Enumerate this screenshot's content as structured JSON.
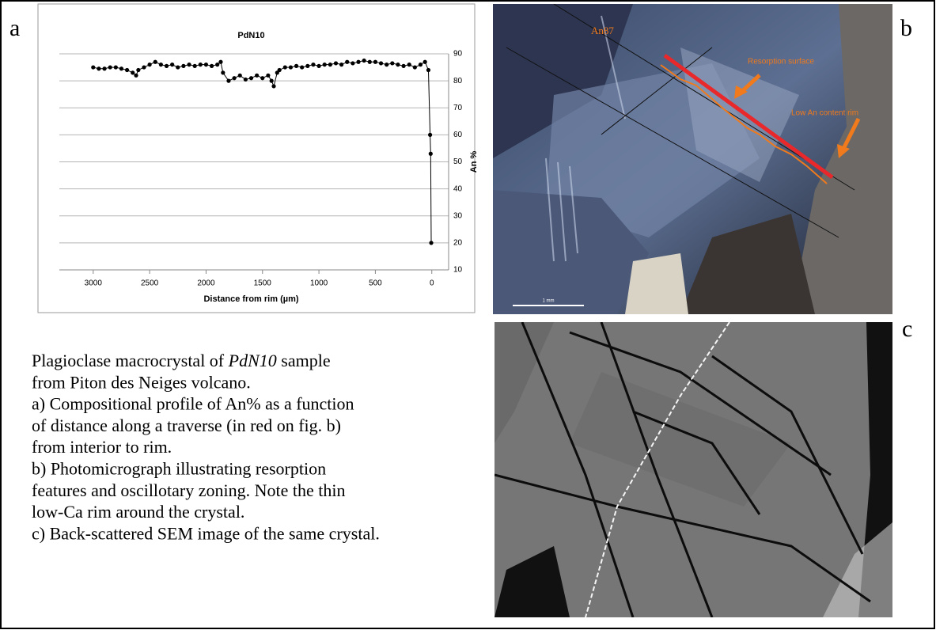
{
  "panel_labels": [
    "a",
    "b",
    "c"
  ],
  "chart_data": {
    "type": "line",
    "title": "PdN10",
    "xlabel": "Distance from rim (µm)",
    "ylabel": "An %",
    "x": [
      3000,
      2950,
      2900,
      2850,
      2800,
      2750,
      2700,
      2650,
      2620,
      2600,
      2550,
      2500,
      2450,
      2400,
      2350,
      2300,
      2250,
      2200,
      2150,
      2100,
      2050,
      2000,
      1950,
      1900,
      1870,
      1850,
      1800,
      1750,
      1700,
      1650,
      1600,
      1550,
      1500,
      1450,
      1420,
      1400,
      1370,
      1350,
      1300,
      1250,
      1200,
      1150,
      1100,
      1050,
      1000,
      950,
      900,
      850,
      800,
      750,
      700,
      650,
      600,
      550,
      500,
      450,
      400,
      350,
      300,
      250,
      200,
      150,
      100,
      60,
      30,
      15,
      10,
      5
    ],
    "series": [
      {
        "name": "An %",
        "color": "#000000",
        "values": [
          85,
          84.5,
          84.5,
          85,
          85,
          84.5,
          84,
          83,
          82,
          84,
          85,
          86,
          87,
          86,
          85.5,
          86,
          85,
          85.5,
          86,
          85.5,
          86,
          86,
          85.5,
          86,
          87,
          83,
          80,
          81,
          82,
          80.5,
          81,
          82,
          81,
          82,
          80,
          78,
          83,
          84,
          85,
          85,
          85.5,
          85,
          85.5,
          86,
          85.5,
          86,
          86,
          86.5,
          86,
          87,
          86.5,
          87,
          87.5,
          87,
          87,
          86.5,
          86,
          86.5,
          86,
          85.5,
          86,
          85,
          86,
          87,
          84,
          60,
          53,
          20
        ]
      }
    ],
    "xlim": [
      3300,
      -100
    ],
    "ylim": [
      10,
      90
    ],
    "xticks": [
      3000,
      2500,
      2000,
      1500,
      1000,
      500,
      0
    ],
    "yticks": [
      10,
      20,
      30,
      40,
      50,
      60,
      70,
      80,
      90
    ],
    "grid": true,
    "y_axis_side": "right"
  },
  "photo_b": {
    "annotations": [
      "An87",
      "Resorption surface",
      "Low An content rim"
    ],
    "scale_bar": "1 mm"
  },
  "caption": {
    "line1": [
      "Plagioclase macrocrystal of ",
      "PdN10",
      " sample"
    ],
    "lines": [
      "from Piton des Neiges volcano.",
      "a) Compositional profile of An% as a function",
      "of distance along a traverse (in red on fig. b)",
      "from interior to rim.",
      "b) Photomicrograph illustrating resorption",
      "features and oscillotary zoning. Note the thin",
      "low-Ca rim around the crystal.",
      "c) Back-scattered SEM image of the same crystal."
    ]
  }
}
